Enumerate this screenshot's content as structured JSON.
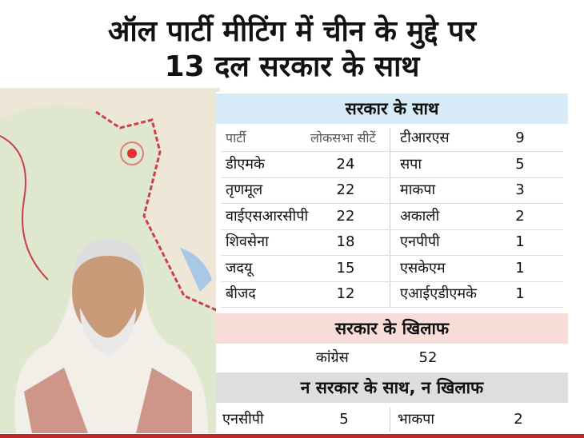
{
  "header": {
    "title_lines": [
      "ऑल पार्टी मीटिंग में चीन के मुद्दे पर",
      "13 दल सरकार के साथ"
    ]
  },
  "with_government": {
    "heading": "सरकार के साथ",
    "column_headers": [
      "पार्टी",
      "लोकसभा सीटें"
    ],
    "left": [
      {
        "party": "डीएमके",
        "seats": 24
      },
      {
        "party": "तृणमूल",
        "seats": 22
      },
      {
        "party": "वाईएसआरसीपी",
        "seats": 22
      },
      {
        "party": "शिवसेना",
        "seats": 18
      },
      {
        "party": "जदयू",
        "seats": 15
      },
      {
        "party": "बीजद",
        "seats": 12
      }
    ],
    "right": [
      {
        "party": "टीआरएस",
        "seats": 9
      },
      {
        "party": "सपा",
        "seats": 5
      },
      {
        "party": "माकपा",
        "seats": 3
      },
      {
        "party": "अकाली",
        "seats": 2
      },
      {
        "party": "एनपीपी",
        "seats": 1
      },
      {
        "party": "एसकेएम",
        "seats": 1
      },
      {
        "party": "एआईएडीएमके",
        "seats": 1
      }
    ]
  },
  "against_government": {
    "heading": "सरकार के खिलाफ",
    "rows": [
      {
        "party": "कांग्रेस",
        "seats": 52
      }
    ]
  },
  "neutral": {
    "heading": "न सरकार के साथ, न खिलाफ",
    "rows": [
      {
        "party": "एनसीपी",
        "seats": 5
      },
      {
        "party": "भाकपा",
        "seats": 2
      }
    ]
  }
}
